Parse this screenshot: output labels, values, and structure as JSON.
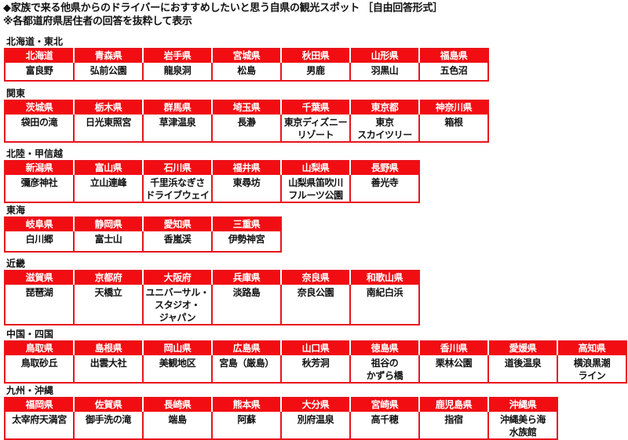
{
  "title": "◆家族で来る他県からのドライバーにおすすめしたいと思う自県の観光スポット ［自由回答形式］",
  "subtitle": "※各都道府県居住者の回答を抜粋して表示",
  "colors": {
    "header_red": "#f20d12",
    "border_red": "#e8141c"
  },
  "regions": [
    {
      "label": "北海道・東北",
      "prefs": [
        {
          "name": "北海道",
          "spot": [
            "富良野"
          ]
        },
        {
          "name": "青森県",
          "spot": [
            "弘前公園"
          ]
        },
        {
          "name": "岩手県",
          "spot": [
            "龍泉洞"
          ]
        },
        {
          "name": "宮城県",
          "spot": [
            "松島"
          ]
        },
        {
          "name": "秋田県",
          "spot": [
            "男鹿"
          ]
        },
        {
          "name": "山形県",
          "spot": [
            "羽黒山"
          ]
        },
        {
          "name": "福島県",
          "spot": [
            "五色沼"
          ]
        }
      ]
    },
    {
      "label": "関東",
      "prefs": [
        {
          "name": "茨城県",
          "spot": [
            "袋田の滝"
          ]
        },
        {
          "name": "栃木県",
          "spot": [
            "日光東照宮"
          ]
        },
        {
          "name": "群馬県",
          "spot": [
            "草津温泉"
          ]
        },
        {
          "name": "埼玉県",
          "spot": [
            "長瀞"
          ]
        },
        {
          "name": "千葉県",
          "spot": [
            "東京ディズニー",
            "リゾート"
          ]
        },
        {
          "name": "東京都",
          "spot": [
            "東京",
            "スカイツリー"
          ]
        },
        {
          "name": "神奈川県",
          "spot": [
            "箱根"
          ]
        }
      ]
    },
    {
      "label": "北陸・甲信越",
      "prefs": [
        {
          "name": "新潟県",
          "spot": [
            "彌彦神社"
          ]
        },
        {
          "name": "富山県",
          "spot": [
            "立山連峰"
          ]
        },
        {
          "name": "石川県",
          "spot": [
            "千里浜なぎさ",
            "ドライブウェイ"
          ]
        },
        {
          "name": "福井県",
          "spot": [
            "東尋坊"
          ]
        },
        {
          "name": "山梨県",
          "spot": [
            "山梨県笛吹川",
            "フルーツ公園"
          ]
        },
        {
          "name": "長野県",
          "spot": [
            "善光寺"
          ]
        }
      ]
    },
    {
      "label": "東海",
      "prefs": [
        {
          "name": "岐阜県",
          "spot": [
            "白川郷"
          ]
        },
        {
          "name": "静岡県",
          "spot": [
            "富士山"
          ]
        },
        {
          "name": "愛知県",
          "spot": [
            "香嵐渓"
          ]
        },
        {
          "name": "三重県",
          "spot": [
            "伊勢神宮"
          ]
        }
      ]
    },
    {
      "label": "近畿",
      "prefs": [
        {
          "name": "滋賀県",
          "spot": [
            "琵琶湖"
          ]
        },
        {
          "name": "京都府",
          "spot": [
            "天橋立"
          ]
        },
        {
          "name": "大阪府",
          "spot": [
            "ユニバーサル・",
            "スタジオ・",
            "ジャパン"
          ]
        },
        {
          "name": "兵庫県",
          "spot": [
            "淡路島"
          ]
        },
        {
          "name": "奈良県",
          "spot": [
            "奈良公園"
          ]
        },
        {
          "name": "和歌山県",
          "spot": [
            "南紀白浜"
          ]
        }
      ]
    },
    {
      "label": "中国・四国",
      "prefs": [
        {
          "name": "鳥取県",
          "spot": [
            "鳥取砂丘"
          ]
        },
        {
          "name": "島根県",
          "spot": [
            "出雲大社"
          ]
        },
        {
          "name": "岡山県",
          "spot": [
            "美観地区"
          ]
        },
        {
          "name": "広島県",
          "spot": [
            "宮島（厳島）"
          ]
        },
        {
          "name": "山口県",
          "spot": [
            "秋芳洞"
          ]
        },
        {
          "name": "徳島県",
          "spot": [
            "祖谷の",
            "かずら橋"
          ]
        },
        {
          "name": "香川県",
          "spot": [
            "栗林公園"
          ]
        },
        {
          "name": "愛媛県",
          "spot": [
            "道後温泉"
          ]
        },
        {
          "name": "高知県",
          "spot": [
            "横浪黒潮",
            "ライン"
          ]
        }
      ]
    },
    {
      "label": "九州・沖縄",
      "prefs": [
        {
          "name": "福岡県",
          "spot": [
            "太宰府天満宮"
          ]
        },
        {
          "name": "佐賀県",
          "spot": [
            "御手洗の滝"
          ]
        },
        {
          "name": "長崎県",
          "spot": [
            "端島"
          ]
        },
        {
          "name": "熊本県",
          "spot": [
            "阿蘇"
          ]
        },
        {
          "name": "大分県",
          "spot": [
            "別府温泉"
          ]
        },
        {
          "name": "宮崎県",
          "spot": [
            "高千穂"
          ]
        },
        {
          "name": "鹿児島県",
          "spot": [
            "指宿"
          ]
        },
        {
          "name": "沖縄県",
          "spot": [
            "沖縄美ら海",
            "水族館"
          ]
        }
      ]
    }
  ]
}
